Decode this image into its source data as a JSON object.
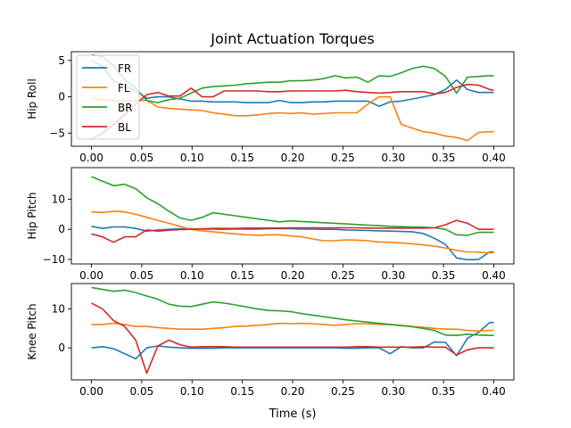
{
  "chart_data": [
    {
      "type": "line",
      "title": "Joint Actuation Torques",
      "ylabel": "Hip Roll",
      "xlabel": "",
      "xlim": [
        -0.02,
        0.42
      ],
      "ylim": [
        -6.8,
        6.2
      ],
      "yticks": [
        -5,
        0,
        5
      ],
      "xticks": [
        "0.00",
        "0.05",
        "0.10",
        "0.15",
        "0.20",
        "0.25",
        "0.30",
        "0.35",
        "0.40"
      ],
      "x": [
        0.0,
        0.011,
        0.022,
        0.033,
        0.044,
        0.055,
        0.066,
        0.077,
        0.088,
        0.099,
        0.11,
        0.121,
        0.132,
        0.143,
        0.154,
        0.165,
        0.176,
        0.187,
        0.198,
        0.209,
        0.22,
        0.231,
        0.242,
        0.253,
        0.264,
        0.275,
        0.286,
        0.297,
        0.308,
        0.319,
        0.33,
        0.341,
        0.352,
        0.363,
        0.374,
        0.385,
        0.396,
        0.4
      ],
      "legend": "upper-left",
      "series": [
        {
          "name": "FR",
          "color": "#1f77b4",
          "values": [
            5.0,
            4.2,
            2.2,
            1.5,
            0.8,
            -0.2,
            0.0,
            0.0,
            -0.3,
            -0.6,
            -0.6,
            -0.7,
            -0.7,
            -0.7,
            -0.8,
            -0.8,
            -0.8,
            -0.5,
            -0.8,
            -0.8,
            -0.7,
            -0.7,
            -0.6,
            -0.6,
            -0.6,
            -0.6,
            -1.3,
            -0.7,
            -0.6,
            -0.3,
            0.0,
            0.3,
            1.0,
            2.3,
            1.0,
            0.6,
            0.6,
            0.6
          ]
        },
        {
          "name": "FL",
          "color": "#ff7f0e",
          "values": [
            -0.2,
            -0.4,
            -0.5,
            -0.6,
            -0.5,
            -0.5,
            -1.4,
            -1.6,
            -1.7,
            -1.8,
            -1.9,
            -2.2,
            -2.4,
            -2.6,
            -2.6,
            -2.5,
            -2.3,
            -2.2,
            -2.3,
            -2.2,
            -2.4,
            -2.3,
            -2.2,
            -2.2,
            -2.2,
            -1.0,
            0.0,
            0.0,
            -3.8,
            -4.3,
            -4.8,
            -5.0,
            -5.4,
            -5.6,
            -6.0,
            -4.9,
            -4.8,
            -4.8
          ]
        },
        {
          "name": "BR",
          "color": "#2ca02c",
          "values": [
            5.8,
            5.5,
            4.3,
            2.4,
            1.2,
            -0.5,
            -0.8,
            -0.4,
            -0.2,
            0.5,
            1.2,
            1.4,
            1.5,
            1.6,
            1.8,
            1.9,
            2.0,
            2.0,
            2.2,
            2.2,
            2.3,
            2.5,
            2.9,
            2.6,
            2.7,
            2.0,
            2.9,
            2.8,
            3.3,
            3.9,
            4.2,
            3.9,
            2.8,
            0.5,
            2.7,
            2.8,
            2.9,
            2.9
          ]
        },
        {
          "name": "BL",
          "color": "#d62728",
          "values": [
            -5.8,
            -5.0,
            -3.8,
            -2.5,
            -1.0,
            0.3,
            0.6,
            0.1,
            0.1,
            1.2,
            0.0,
            0.0,
            0.8,
            0.8,
            0.8,
            0.8,
            0.7,
            0.7,
            0.8,
            0.8,
            0.8,
            0.8,
            0.8,
            0.9,
            0.7,
            0.6,
            0.5,
            0.6,
            0.7,
            0.7,
            0.7,
            0.4,
            0.6,
            1.3,
            1.7,
            1.6,
            1.0,
            0.9
          ]
        }
      ]
    },
    {
      "type": "line",
      "ylabel": "Hip Pitch",
      "xlabel": "",
      "xlim": [
        -0.02,
        0.42
      ],
      "ylim": [
        -11.5,
        20.5
      ],
      "yticks": [
        -10,
        0,
        10
      ],
      "xticks": [
        "0.00",
        "0.05",
        "0.10",
        "0.15",
        "0.20",
        "0.25",
        "0.30",
        "0.35",
        "0.40"
      ],
      "x": [
        0.0,
        0.011,
        0.022,
        0.033,
        0.044,
        0.055,
        0.066,
        0.077,
        0.088,
        0.099,
        0.11,
        0.121,
        0.132,
        0.143,
        0.154,
        0.165,
        0.176,
        0.187,
        0.198,
        0.209,
        0.22,
        0.231,
        0.242,
        0.253,
        0.264,
        0.275,
        0.286,
        0.297,
        0.308,
        0.319,
        0.33,
        0.341,
        0.352,
        0.363,
        0.374,
        0.385,
        0.396,
        0.4
      ],
      "series": [
        {
          "name": "FR",
          "color": "#1f77b4",
          "values": [
            1.0,
            0.3,
            0.8,
            0.8,
            0.3,
            -0.6,
            -0.2,
            0.0,
            0.2,
            0.2,
            0.1,
            0.1,
            0.0,
            0.1,
            0.1,
            0.1,
            0.2,
            0.2,
            0.2,
            0.1,
            0.1,
            0.0,
            0.0,
            -0.2,
            -0.3,
            -0.4,
            -0.5,
            -0.6,
            -0.7,
            -0.8,
            -1.4,
            -3.0,
            -5.0,
            -9.5,
            -10.1,
            -10.0,
            -7.5,
            -7.5
          ]
        },
        {
          "name": "FL",
          "color": "#ff7f0e",
          "values": [
            5.8,
            5.6,
            6.0,
            5.8,
            5.0,
            4.0,
            3.0,
            2.0,
            1.0,
            0.0,
            -0.5,
            -0.8,
            -1.2,
            -1.5,
            -1.8,
            -2.0,
            -1.8,
            -1.8,
            -2.2,
            -2.5,
            -3.2,
            -3.8,
            -3.8,
            -3.5,
            -3.6,
            -3.8,
            -4.2,
            -4.3,
            -4.5,
            -4.8,
            -5.2,
            -5.6,
            -6.2,
            -7.0,
            -7.5,
            -7.6,
            -7.8,
            -7.8
          ]
        },
        {
          "name": "BR",
          "color": "#2ca02c",
          "values": [
            17.5,
            16.0,
            14.5,
            15.0,
            13.5,
            10.5,
            8.5,
            6.0,
            3.8,
            3.0,
            4.0,
            5.5,
            5.0,
            4.5,
            4.0,
            3.5,
            3.0,
            2.5,
            2.8,
            2.6,
            2.4,
            2.2,
            2.0,
            1.8,
            1.6,
            1.4,
            1.2,
            1.0,
            0.9,
            0.8,
            0.7,
            0.5,
            0.0,
            -1.8,
            -2.0,
            -1.0,
            -1.0,
            -1.0
          ]
        },
        {
          "name": "BL",
          "color": "#d62728",
          "values": [
            -1.5,
            -2.5,
            -4.3,
            -2.5,
            -2.5,
            -0.2,
            -0.6,
            -0.3,
            -0.1,
            0.0,
            0.2,
            0.3,
            0.3,
            0.3,
            0.4,
            0.4,
            0.4,
            0.4,
            0.5,
            0.5,
            0.5,
            0.5,
            0.5,
            0.5,
            0.5,
            0.4,
            0.4,
            0.4,
            0.4,
            0.4,
            0.4,
            0.5,
            1.5,
            3.0,
            2.0,
            0.0,
            0.0,
            0.0
          ]
        }
      ]
    },
    {
      "type": "line",
      "ylabel": "Knee Pitch",
      "xlabel": "Time (s)",
      "xlim": [
        -0.02,
        0.42
      ],
      "ylim": [
        -8.2,
        16.5
      ],
      "yticks": [
        0,
        10
      ],
      "xticks": [
        "0.00",
        "0.05",
        "0.10",
        "0.15",
        "0.20",
        "0.25",
        "0.30",
        "0.35",
        "0.40"
      ],
      "x": [
        0.0,
        0.011,
        0.022,
        0.033,
        0.044,
        0.055,
        0.066,
        0.077,
        0.088,
        0.099,
        0.11,
        0.121,
        0.132,
        0.143,
        0.154,
        0.165,
        0.176,
        0.187,
        0.198,
        0.209,
        0.22,
        0.231,
        0.242,
        0.253,
        0.264,
        0.275,
        0.286,
        0.297,
        0.308,
        0.319,
        0.33,
        0.341,
        0.352,
        0.363,
        0.374,
        0.385,
        0.396,
        0.4
      ],
      "series": [
        {
          "name": "FR",
          "color": "#1f77b4",
          "values": [
            0.0,
            0.3,
            -0.2,
            -1.5,
            -2.8,
            0.0,
            0.5,
            0.2,
            0.0,
            -0.1,
            -0.1,
            -0.1,
            0.0,
            0.0,
            0.0,
            0.0,
            0.0,
            0.0,
            0.0,
            0.0,
            0.0,
            0.0,
            0.0,
            -0.1,
            -0.1,
            0.0,
            0.0,
            -1.5,
            0.3,
            0.0,
            0.0,
            1.5,
            1.4,
            -2.0,
            2.5,
            4.0,
            6.5,
            6.5
          ]
        },
        {
          "name": "FL",
          "color": "#ff7f0e",
          "values": [
            6.0,
            6.0,
            6.3,
            6.0,
            5.5,
            5.5,
            5.2,
            5.0,
            4.8,
            4.8,
            4.8,
            5.0,
            5.2,
            5.5,
            5.6,
            5.8,
            6.0,
            6.3,
            6.2,
            6.3,
            6.2,
            6.0,
            5.8,
            6.0,
            6.2,
            6.2,
            6.0,
            6.0,
            5.8,
            5.5,
            5.3,
            5.0,
            4.8,
            4.8,
            4.5,
            4.3,
            4.5,
            4.5
          ]
        },
        {
          "name": "BR",
          "color": "#2ca02c",
          "values": [
            15.5,
            15.0,
            14.5,
            14.8,
            14.2,
            13.3,
            12.5,
            11.2,
            10.7,
            10.6,
            11.2,
            11.8,
            11.5,
            11.0,
            10.5,
            10.0,
            9.6,
            9.5,
            9.3,
            8.8,
            8.4,
            8.0,
            7.6,
            7.2,
            6.9,
            6.6,
            6.3,
            6.0,
            5.7,
            5.4,
            5.0,
            4.5,
            3.3,
            3.2,
            3.5,
            3.3,
            3.2,
            3.2
          ]
        },
        {
          "name": "BL",
          "color": "#d62728",
          "values": [
            11.5,
            10.0,
            7.0,
            5.5,
            2.0,
            -6.5,
            0.5,
            2.0,
            0.8,
            0.2,
            0.3,
            0.3,
            0.3,
            0.2,
            0.2,
            0.2,
            0.2,
            0.2,
            0.2,
            0.2,
            0.2,
            0.2,
            0.2,
            0.2,
            0.3,
            0.3,
            0.2,
            0.2,
            0.2,
            0.2,
            0.3,
            0.2,
            0.2,
            -1.8,
            -0.5,
            0.0,
            0.0,
            0.0
          ]
        }
      ]
    }
  ]
}
